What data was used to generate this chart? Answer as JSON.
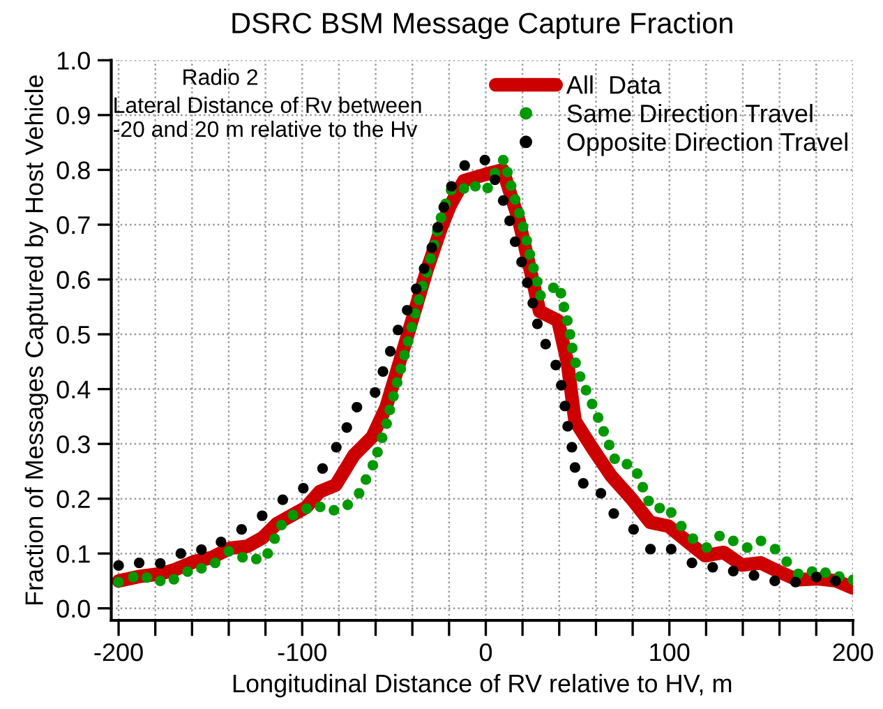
{
  "chart_data": {
    "type": "line",
    "title": "DSRC BSM Message Capture Fraction",
    "xlabel": "Longitudinal Distance of RV relative to HV, m",
    "ylabel": "Fraction of Messages Captured by Host Vehicle",
    "annotations": [
      "Radio 2",
      "Lateral Distance of Rv between\n-20 and 20 m relative to the Hv"
    ],
    "xlim": [
      -204,
      200
    ],
    "ylim": [
      -0.022,
      1.0
    ],
    "xticks": [
      -200,
      {
        "value": -180,
        "label": null
      },
      {
        "value": -160,
        "label": null
      },
      {
        "value": -140,
        "label": null
      },
      {
        "value": -120,
        "label": null
      },
      -100,
      {
        "value": -80,
        "label": null
      },
      {
        "value": -60,
        "label": null
      },
      {
        "value": -40,
        "label": null
      },
      {
        "value": -20,
        "label": null
      },
      0,
      {
        "value": 20,
        "label": null
      },
      {
        "value": 40,
        "label": null
      },
      {
        "value": 60,
        "label": null
      },
      {
        "value": 80,
        "label": null
      },
      100,
      {
        "value": 120,
        "label": null
      },
      {
        "value": 140,
        "label": null
      },
      {
        "value": 160,
        "label": null
      },
      {
        "value": 180,
        "label": null
      },
      200
    ],
    "yticks": [
      {
        "value": 0,
        "label": "0.0"
      },
      0.1,
      0.2,
      0.3,
      0.4,
      0.5,
      0.6,
      0.7,
      0.8,
      0.9,
      {
        "value": 1,
        "label": "1.0"
      }
    ],
    "grid": true,
    "legend": "top right",
    "series": [
      {
        "name": "All  Data",
        "color": "#cc0000",
        "line_style": "solid",
        "marker": "none",
        "x": [
          -200,
          -189,
          -177,
          -169,
          -159,
          -149,
          -139,
          -130,
          -121.5,
          -114,
          -105,
          -98,
          -90.4,
          -81.7,
          -71.7,
          -61.8,
          -54.3,
          -46.8,
          -39.4,
          -32,
          -24.4,
          -19.4,
          -12,
          0,
          9.3,
          18,
          24.3,
          29.3,
          39.3,
          44.4,
          48.6,
          58.1,
          68.2,
          79.4,
          89.5,
          99.5,
          110.8,
          119.5,
          129.6,
          139.6,
          149.6,
          159.6,
          169.7,
          181,
          191,
          200
        ],
        "values": [
          0.05,
          0.058,
          0.063,
          0.071,
          0.085,
          0.093,
          0.11,
          0.113,
          0.129,
          0.154,
          0.171,
          0.184,
          0.213,
          0.225,
          0.28,
          0.313,
          0.367,
          0.451,
          0.534,
          0.618,
          0.693,
          0.735,
          0.78,
          0.792,
          0.8,
          0.708,
          0.617,
          0.542,
          0.525,
          0.45,
          0.342,
          0.292,
          0.242,
          0.2,
          0.157,
          0.15,
          0.119,
          0.096,
          0.102,
          0.079,
          0.083,
          0.067,
          0.052,
          0.054,
          0.05,
          0.037
        ]
      },
      {
        "name": "Same Direction Travel",
        "type": "scatter",
        "color": "#009900",
        "marker": "circle",
        "x": [
          -200,
          -192,
          -184.6,
          -177.3,
          -169.9,
          -162.4,
          -154.9,
          -147.4,
          -140,
          -132.5,
          -125,
          -118.8,
          -115,
          -111.3,
          -105,
          -97.6,
          -90.2,
          -82.7,
          -75.2,
          -69,
          -65.3,
          -61.5,
          -59,
          -56.5,
          -54,
          -52.3,
          -50.3,
          -48.3,
          -46.3,
          -44.3,
          -42.3,
          -40.3,
          -38.4,
          -36.4,
          -34.4,
          -32.1,
          -30.1,
          -28.2,
          -26.4,
          -24.4,
          -21.9,
          -18.9,
          -11.9,
          -5.7,
          1,
          5,
          9.5,
          11.8,
          13.8,
          16,
          18.3,
          20.3,
          22.3,
          24,
          26,
          28,
          29.8,
          36.8,
          40.9,
          42.6,
          44.4,
          45.9,
          47.1,
          48.9,
          51.4,
          54.6,
          57.9,
          61.2,
          64.2,
          67.2,
          70.2,
          76.9,
          82.5,
          85.5,
          88.7,
          94.7,
          101,
          106.5,
          112.8,
          120.3,
          127.3,
          134.8,
          142.4,
          149.9,
          157.6,
          163.9,
          170.2,
          177.7,
          185,
          192.5,
          200
        ],
        "values": [
          0.048,
          0.057,
          0.056,
          0.05,
          0.053,
          0.067,
          0.073,
          0.083,
          0.104,
          0.093,
          0.09,
          0.1,
          0.127,
          0.152,
          0.17,
          0.182,
          0.185,
          0.179,
          0.189,
          0.21,
          0.235,
          0.261,
          0.285,
          0.311,
          0.337,
          0.362,
          0.387,
          0.412,
          0.437,
          0.462,
          0.487,
          0.513,
          0.538,
          0.563,
          0.588,
          0.613,
          0.638,
          0.663,
          0.688,
          0.713,
          0.738,
          0.763,
          0.766,
          0.77,
          0.767,
          0.794,
          0.818,
          0.796,
          0.771,
          0.746,
          0.721,
          0.696,
          0.671,
          0.646,
          0.621,
          0.596,
          0.571,
          0.585,
          0.575,
          0.55,
          0.525,
          0.5,
          0.475,
          0.448,
          0.423,
          0.398,
          0.373,
          0.348,
          0.323,
          0.298,
          0.273,
          0.263,
          0.246,
          0.221,
          0.196,
          0.183,
          0.175,
          0.15,
          0.127,
          0.111,
          0.132,
          0.123,
          0.111,
          0.123,
          0.108,
          0.085,
          0.063,
          0.067,
          0.065,
          0.058,
          0.052
        ]
      },
      {
        "name": "Opposite Direction Travel",
        "type": "scatter",
        "color": "#000000",
        "marker": "circle",
        "x": [
          -200,
          -188.8,
          -177.3,
          -166.1,
          -154.9,
          -144.2,
          -133,
          -121.8,
          -110.6,
          -99.4,
          -88.9,
          -81.4,
          -75.7,
          -70.2,
          -60.3,
          -56,
          -52,
          -47.8,
          -42.8,
          -37.9,
          -33.6,
          -29.4,
          -26.2,
          -22.9,
          -18.7,
          -11.5,
          -0.5,
          5,
          9.5,
          13,
          16,
          19.5,
          22.6,
          25.6,
          28.1,
          32.6,
          38.1,
          41.1,
          43.1,
          44.6,
          46.9,
          48.6,
          53.1,
          62.7,
          69.7,
          80.5,
          89.7,
          101,
          112.3,
          123.6,
          134.8,
          146.1,
          157.4,
          168.7,
          180,
          190.5
        ],
        "values": [
          0.078,
          0.083,
          0.082,
          0.1,
          0.107,
          0.121,
          0.144,
          0.169,
          0.198,
          0.219,
          0.255,
          0.294,
          0.33,
          0.367,
          0.394,
          0.432,
          0.469,
          0.508,
          0.544,
          0.583,
          0.62,
          0.658,
          0.695,
          0.732,
          0.77,
          0.808,
          0.818,
          0.782,
          0.744,
          0.707,
          0.669,
          0.632,
          0.594,
          0.557,
          0.519,
          0.482,
          0.444,
          0.407,
          0.369,
          0.332,
          0.294,
          0.257,
          0.228,
          0.21,
          0.173,
          0.144,
          0.108,
          0.108,
          0.083,
          0.075,
          0.068,
          0.06,
          0.05,
          0.048,
          0.057,
          0.05
        ]
      }
    ]
  }
}
